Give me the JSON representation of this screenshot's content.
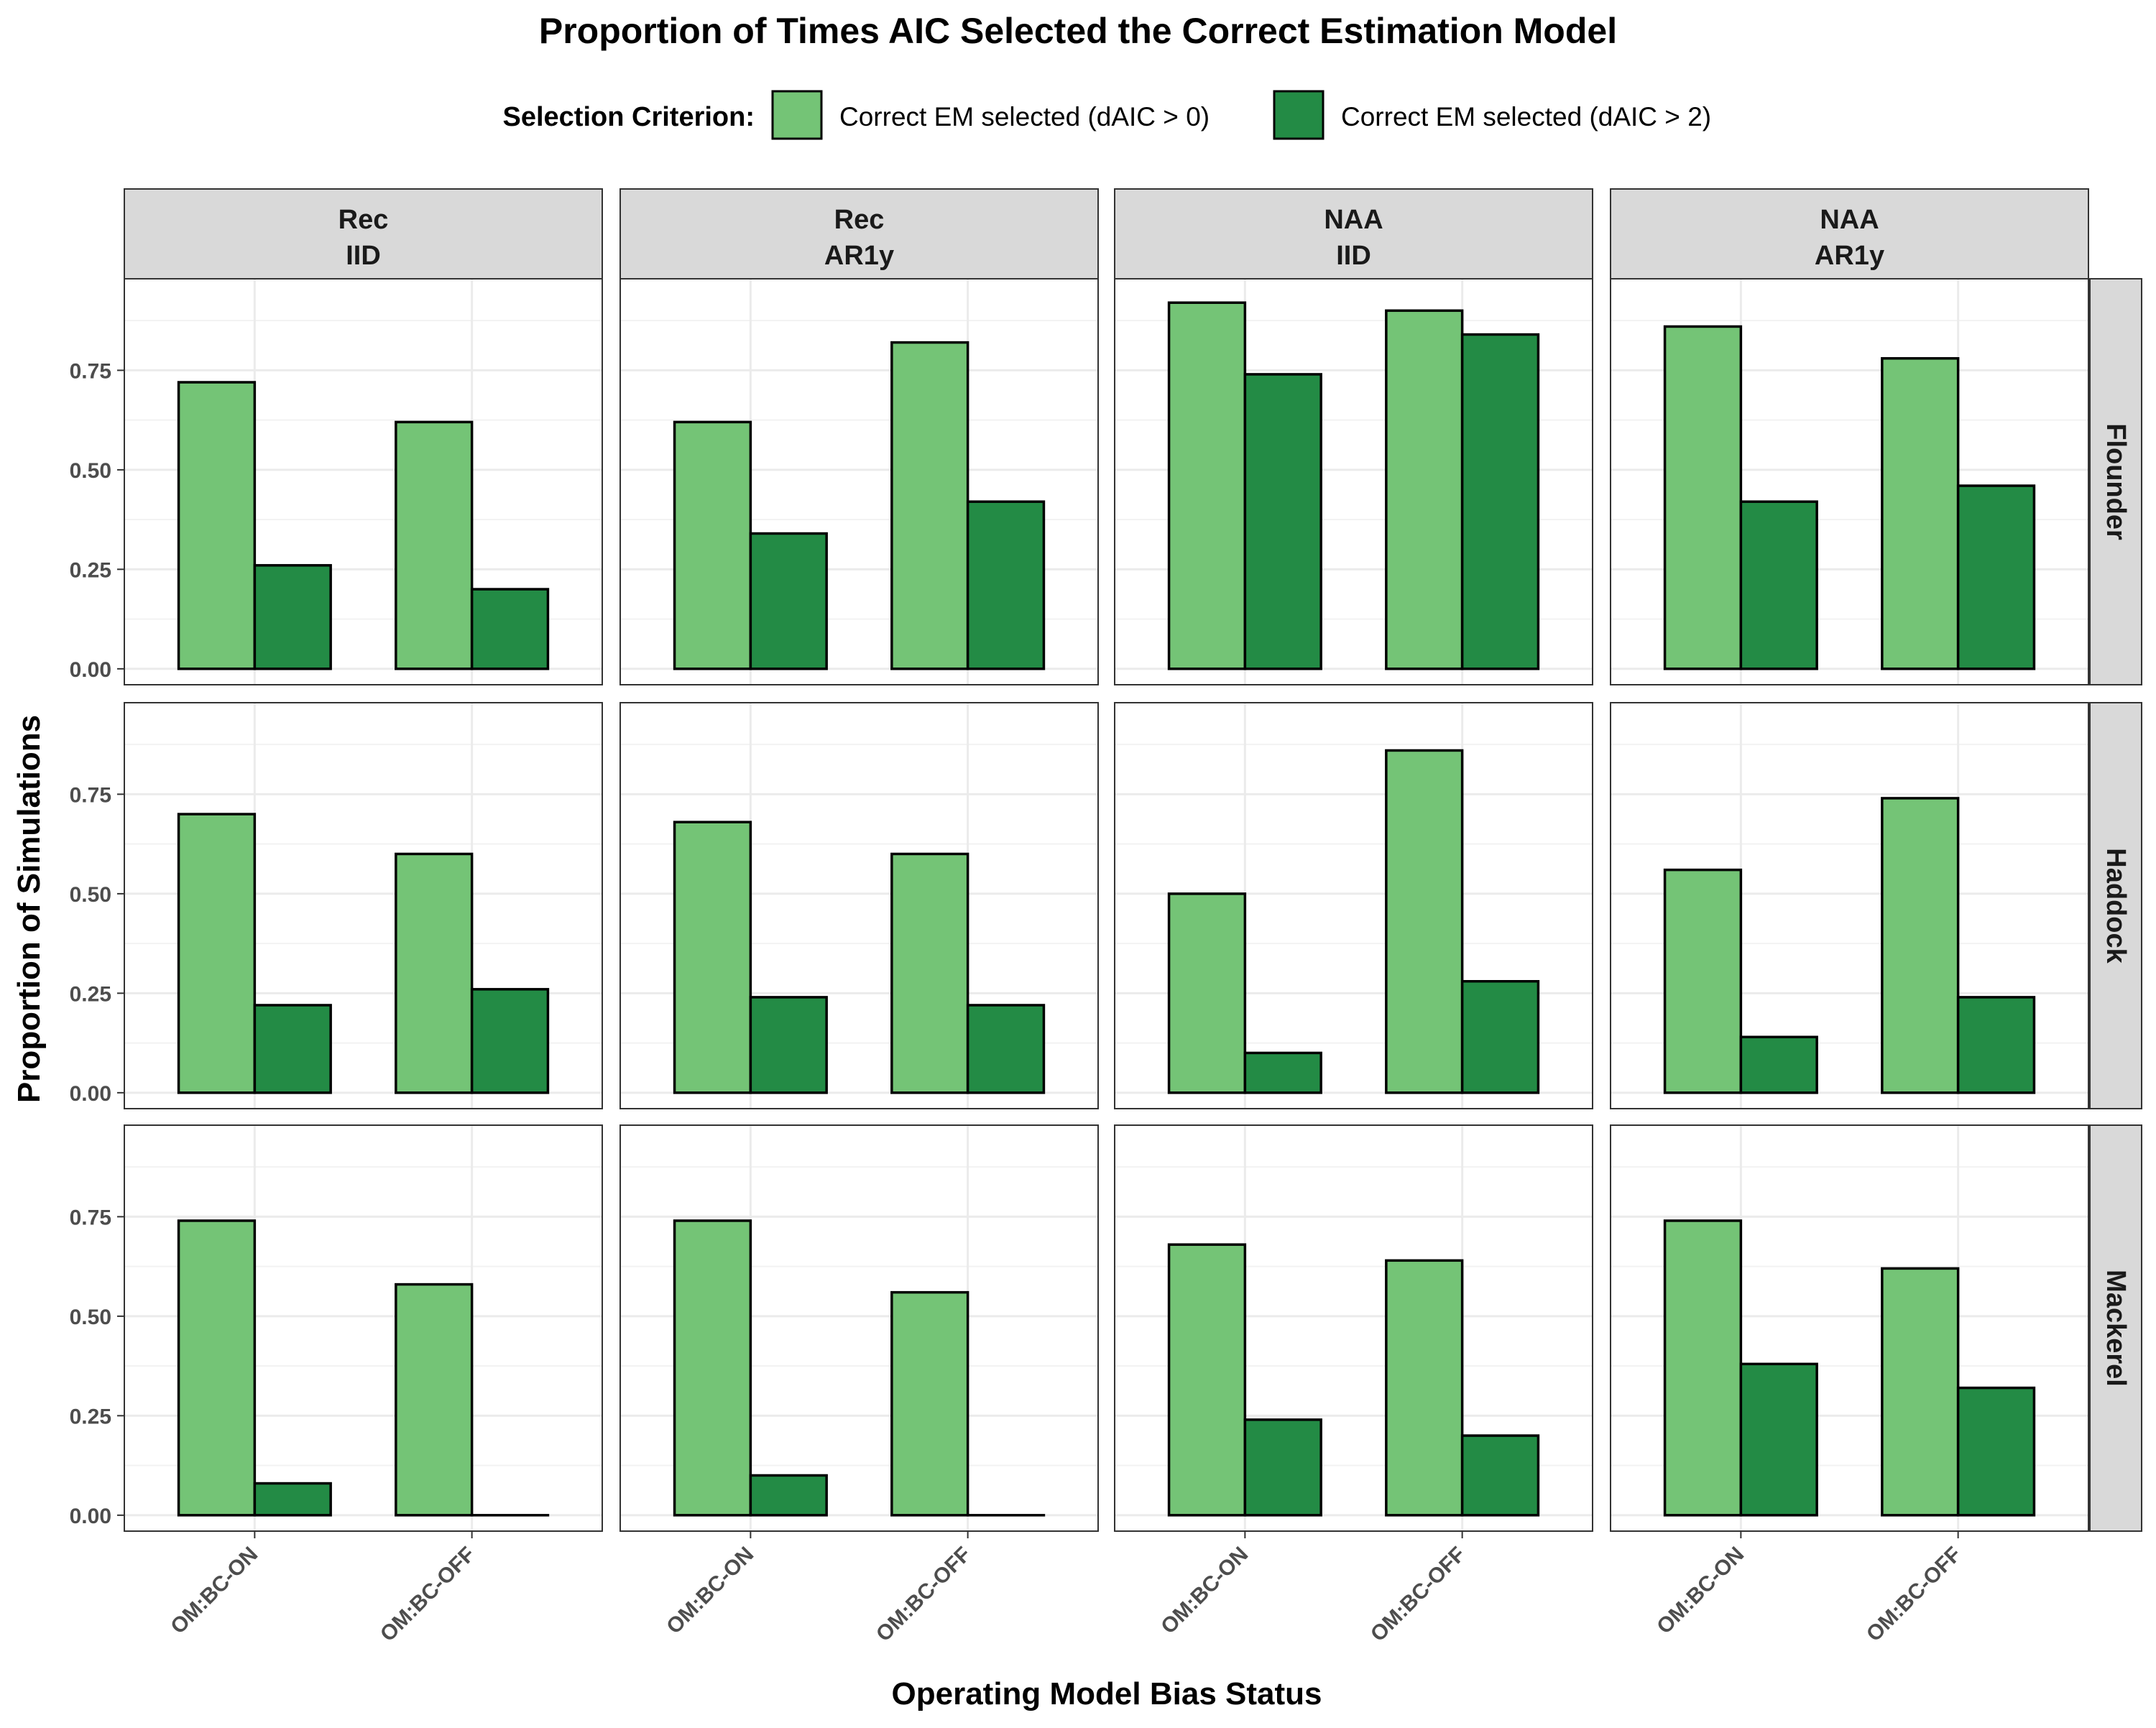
{
  "chart_data": {
    "type": "bar",
    "title": "Proportion of Times AIC Selected the Correct Estimation Model",
    "xlabel": "Operating Model Bias Status",
    "ylabel": "Proportion of Simulations",
    "ylim": [
      -0.04,
      0.98
    ],
    "yticks": [
      0.0,
      0.25,
      0.5,
      0.75
    ],
    "ytick_labels": [
      "0.00",
      "0.25",
      "0.50",
      "0.75"
    ],
    "grid": true,
    "legend": {
      "title": "Selection Criterion:",
      "placement": "top",
      "entries": [
        "Correct EM selected (dAIC > 0)",
        "Correct EM selected (dAIC > 2)"
      ]
    },
    "categories": [
      "OM:BC-ON",
      "OM:BC-OFF"
    ],
    "series_colors": [
      "#74c476",
      "#238b45"
    ],
    "columns": [
      {
        "line1": "Rec",
        "line2": "IID"
      },
      {
        "line1": "Rec",
        "line2": "AR1y"
      },
      {
        "line1": "NAA",
        "line2": "IID"
      },
      {
        "line1": "NAA",
        "line2": "AR1y"
      }
    ],
    "rows": [
      "Flounder",
      "Haddock",
      "Mackerel"
    ],
    "panels": [
      [
        {
          "series": [
            {
              "values": [
                0.72,
                0.62
              ]
            },
            {
              "values": [
                0.26,
                0.2
              ]
            }
          ]
        },
        {
          "series": [
            {
              "values": [
                0.62,
                0.82
              ]
            },
            {
              "values": [
                0.34,
                0.42
              ]
            }
          ]
        },
        {
          "series": [
            {
              "values": [
                0.92,
                0.9
              ]
            },
            {
              "values": [
                0.74,
                0.84
              ]
            }
          ]
        },
        {
          "series": [
            {
              "values": [
                0.86,
                0.78
              ]
            },
            {
              "values": [
                0.42,
                0.46
              ]
            }
          ]
        }
      ],
      [
        {
          "series": [
            {
              "values": [
                0.7,
                0.6
              ]
            },
            {
              "values": [
                0.22,
                0.26
              ]
            }
          ]
        },
        {
          "series": [
            {
              "values": [
                0.68,
                0.6
              ]
            },
            {
              "values": [
                0.24,
                0.22
              ]
            }
          ]
        },
        {
          "series": [
            {
              "values": [
                0.5,
                0.86
              ]
            },
            {
              "values": [
                0.1,
                0.28
              ]
            }
          ]
        },
        {
          "series": [
            {
              "values": [
                0.56,
                0.74
              ]
            },
            {
              "values": [
                0.14,
                0.24
              ]
            }
          ]
        }
      ],
      [
        {
          "series": [
            {
              "values": [
                0.74,
                0.58
              ]
            },
            {
              "values": [
                0.08,
                0.0
              ]
            }
          ]
        },
        {
          "series": [
            {
              "values": [
                0.74,
                0.56
              ]
            },
            {
              "values": [
                0.1,
                0.0
              ]
            }
          ]
        },
        {
          "series": [
            {
              "values": [
                0.68,
                0.64
              ]
            },
            {
              "values": [
                0.24,
                0.2
              ]
            }
          ]
        },
        {
          "series": [
            {
              "values": [
                0.74,
                0.62
              ]
            },
            {
              "values": [
                0.38,
                0.32
              ]
            }
          ]
        }
      ]
    ]
  }
}
